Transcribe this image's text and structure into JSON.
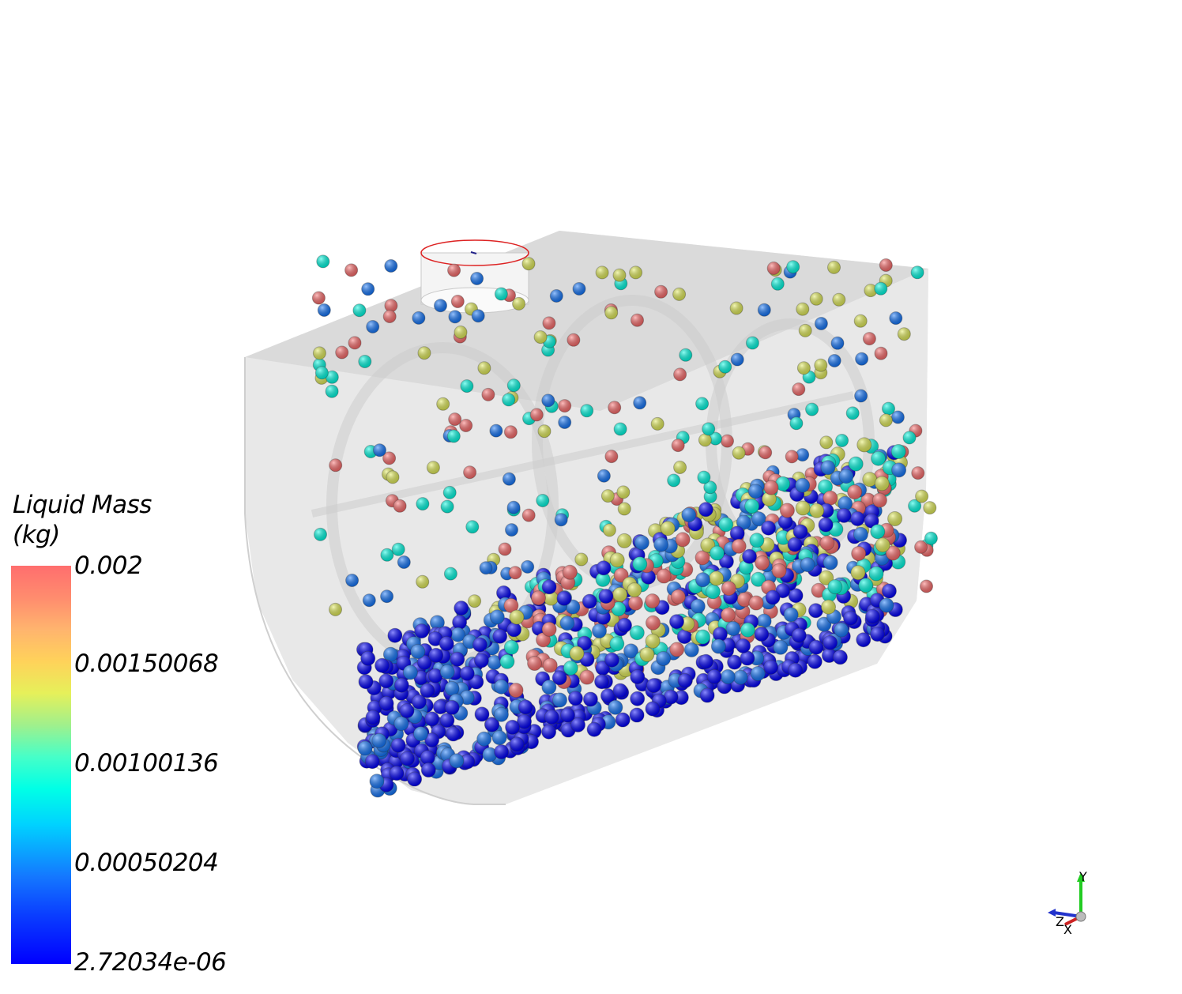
{
  "colorbar": {
    "title_line1": "Liquid Mass",
    "title_line2": "(kg)",
    "ticks": [
      "0.002",
      "0.00150068",
      "0.00100136",
      "0.00050204",
      "2.72034e-06"
    ],
    "colors": [
      "#0000ff",
      "#1478ff",
      "#00ffe6",
      "#e6f05a",
      "#ff6e6e"
    ]
  },
  "axes_widget": {
    "x": "X",
    "y": "Y",
    "z": "Z"
  }
}
